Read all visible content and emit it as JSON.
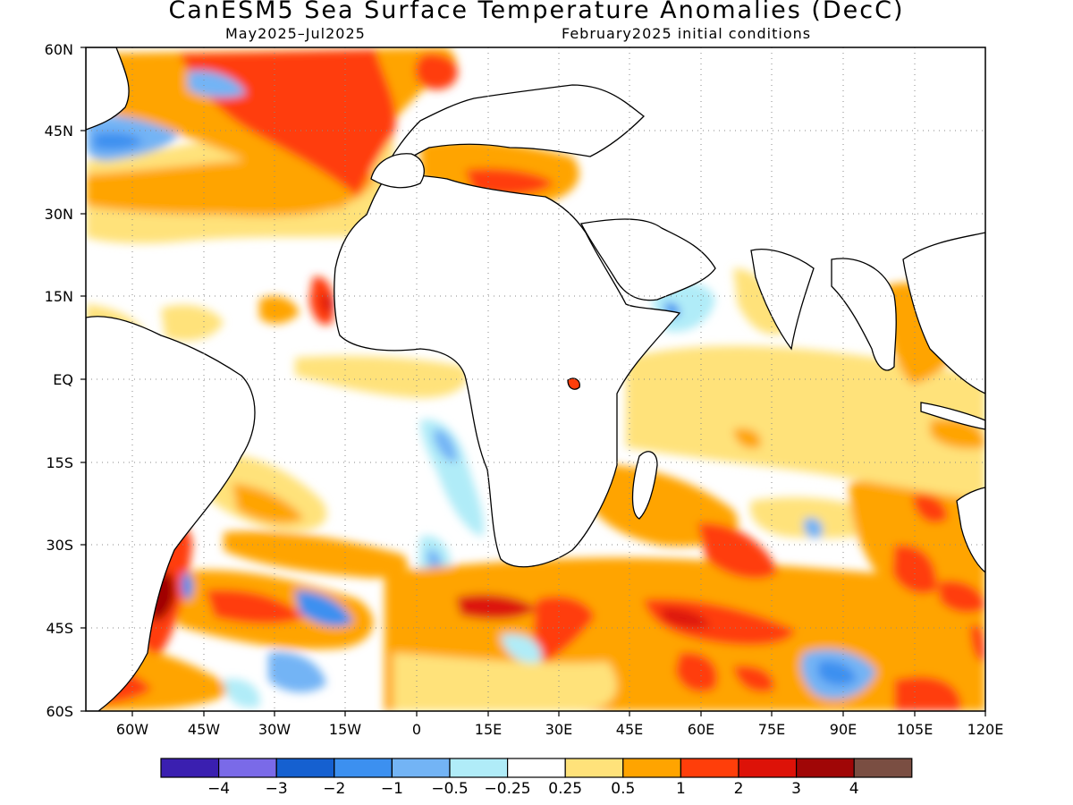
{
  "title": "CanESM5 Sea Surface Temperature Anomalies (DecC)",
  "subtitle_left": "May2025–Jul2025",
  "subtitle_right": "February2025 initial conditions",
  "map": {
    "lat_range": [
      -60,
      60
    ],
    "lon_range": [
      -70,
      120
    ],
    "y_ticks": [
      "60N",
      "45N",
      "30N",
      "15N",
      "EQ",
      "15S",
      "30S",
      "45S",
      "60S"
    ],
    "x_ticks": [
      "60W",
      "45W",
      "30W",
      "15W",
      "0",
      "15E",
      "30E",
      "45E",
      "60E",
      "75E",
      "90E",
      "105E",
      "120E"
    ],
    "gridlines": "dotted"
  },
  "colorbar": {
    "colors": [
      "#3a1fb0",
      "#7a6ae8",
      "#1560d0",
      "#3c90f0",
      "#73b4f5",
      "#b0ecf8",
      "#ffffff",
      "#ffe27a",
      "#ffa400",
      "#ff3e0a",
      "#dd1208",
      "#a00606",
      "#7a4e42"
    ],
    "labels": [
      "−4",
      "−3",
      "−2",
      "−1",
      "−0.5",
      "−0.25",
      "0.25",
      "0.5",
      "1",
      "2",
      "3",
      "4"
    ]
  }
}
